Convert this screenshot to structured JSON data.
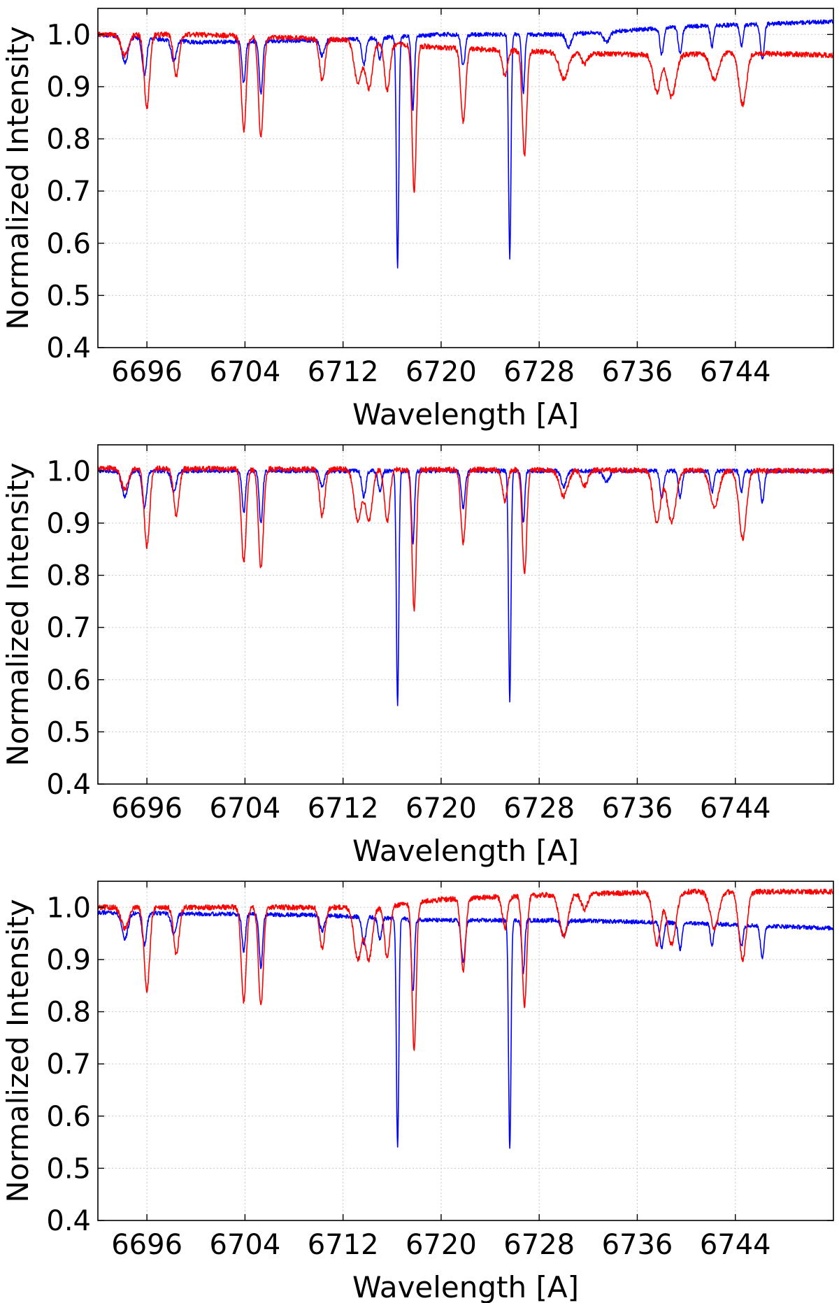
{
  "chart_data": [
    {
      "type": "line",
      "xlabel": "Wavelength [A]",
      "ylabel": "Normalized Intensity",
      "xlim": [
        6692,
        6752
      ],
      "ylim": [
        0.4,
        1.05
      ],
      "xticks": [
        6696,
        6704,
        6712,
        6720,
        6728,
        6736,
        6744
      ],
      "xtick_labels": [
        "6696",
        "6704",
        "6712",
        "6720",
        "6728",
        "6736",
        "6744"
      ],
      "yticks": [
        0.4,
        0.5,
        0.6,
        0.7,
        0.8,
        0.9,
        1.0
      ],
      "ytick_labels": [
        "0.4",
        "0.5",
        "0.6",
        "0.7",
        "0.8",
        "0.9",
        "1.0"
      ],
      "grid": true,
      "series": [
        {
          "color": "#0000ff",
          "continuum": [
            [
              6692,
              1.0
            ],
            [
              6700,
              0.985
            ],
            [
              6712,
              0.99
            ],
            [
              6720,
              1.0
            ],
            [
              6730,
              1.0
            ],
            [
              6740,
              1.015
            ],
            [
              6752,
              1.025
            ]
          ],
          "lines": [
            [
              6694.2,
              0.05,
              0.25
            ],
            [
              6695.8,
              0.07,
              0.18
            ],
            [
              6698.2,
              0.04,
              0.2
            ],
            [
              6703.9,
              0.08,
              0.14
            ],
            [
              6705.3,
              0.1,
              0.14
            ],
            [
              6710.3,
              0.03,
              0.18
            ],
            [
              6713.7,
              0.05,
              0.16
            ],
            [
              6715.0,
              0.04,
              0.15
            ],
            [
              6716.45,
              0.44,
              0.1
            ],
            [
              6717.7,
              0.14,
              0.12
            ],
            [
              6721.8,
              0.06,
              0.16
            ],
            [
              6725.6,
              0.43,
              0.1
            ],
            [
              6726.7,
              0.11,
              0.12
            ],
            [
              6730.4,
              0.025,
              0.2
            ],
            [
              6733.5,
              0.02,
              0.25
            ],
            [
              6738.0,
              0.05,
              0.15
            ],
            [
              6739.5,
              0.05,
              0.15
            ],
            [
              6742.1,
              0.04,
              0.13
            ],
            [
              6744.5,
              0.04,
              0.13
            ],
            [
              6746.2,
              0.07,
              0.15
            ]
          ],
          "noise": 0.004
        },
        {
          "color": "#ff0000",
          "continuum": [
            [
              6692,
              1.0
            ],
            [
              6700,
              1.0
            ],
            [
              6712,
              0.99
            ],
            [
              6720,
              0.975
            ],
            [
              6730,
              0.965
            ],
            [
              6738,
              0.96
            ],
            [
              6744,
              0.965
            ],
            [
              6752,
              0.96
            ]
          ],
          "lines": [
            [
              6694.2,
              0.04,
              0.3
            ],
            [
              6696.0,
              0.14,
              0.22
            ],
            [
              6698.4,
              0.08,
              0.22
            ],
            [
              6703.9,
              0.18,
              0.2
            ],
            [
              6705.3,
              0.19,
              0.2
            ],
            [
              6710.3,
              0.08,
              0.22
            ],
            [
              6713.2,
              0.08,
              0.3
            ],
            [
              6714.1,
              0.09,
              0.28
            ],
            [
              6715.6,
              0.09,
              0.22
            ],
            [
              6717.8,
              0.28,
              0.17
            ],
            [
              6721.8,
              0.14,
              0.2
            ],
            [
              6725.2,
              0.05,
              0.2
            ],
            [
              6726.8,
              0.2,
              0.18
            ],
            [
              6730.0,
              0.05,
              0.35
            ],
            [
              6731.7,
              0.02,
              0.25
            ],
            [
              6737.6,
              0.07,
              0.3
            ],
            [
              6738.8,
              0.08,
              0.35
            ],
            [
              6742.3,
              0.05,
              0.35
            ],
            [
              6744.6,
              0.1,
              0.3
            ]
          ],
          "noise": 0.005
        }
      ]
    },
    {
      "type": "line",
      "xlabel": "Wavelength [A]",
      "ylabel": "Normalized Intensity",
      "xlim": [
        6692,
        6752
      ],
      "ylim": [
        0.4,
        1.05
      ],
      "xticks": [
        6696,
        6704,
        6712,
        6720,
        6728,
        6736,
        6744
      ],
      "xtick_labels": [
        "6696",
        "6704",
        "6712",
        "6720",
        "6728",
        "6736",
        "6744"
      ],
      "yticks": [
        0.4,
        0.5,
        0.6,
        0.7,
        0.8,
        0.9,
        1.0
      ],
      "ytick_labels": [
        "0.4",
        "0.5",
        "0.6",
        "0.7",
        "0.8",
        "0.9",
        "1.0"
      ],
      "grid": true,
      "series": [
        {
          "color": "#0000ff",
          "continuum": [
            [
              6692,
              1.0
            ],
            [
              6752,
              1.0
            ]
          ],
          "lines": [
            [
              6694.2,
              0.05,
              0.25
            ],
            [
              6695.8,
              0.07,
              0.18
            ],
            [
              6698.2,
              0.04,
              0.2
            ],
            [
              6703.9,
              0.08,
              0.14
            ],
            [
              6705.3,
              0.1,
              0.14
            ],
            [
              6710.3,
              0.03,
              0.18
            ],
            [
              6713.7,
              0.05,
              0.16
            ],
            [
              6715.0,
              0.04,
              0.15
            ],
            [
              6716.45,
              0.45,
              0.1
            ],
            [
              6717.7,
              0.14,
              0.12
            ],
            [
              6721.8,
              0.07,
              0.16
            ],
            [
              6725.6,
              0.44,
              0.1
            ],
            [
              6726.7,
              0.1,
              0.12
            ],
            [
              6730.0,
              0.03,
              0.2
            ],
            [
              6733.5,
              0.02,
              0.25
            ],
            [
              6738.0,
              0.05,
              0.15
            ],
            [
              6739.5,
              0.05,
              0.15
            ],
            [
              6742.1,
              0.04,
              0.13
            ],
            [
              6744.5,
              0.04,
              0.13
            ],
            [
              6746.2,
              0.06,
              0.15
            ]
          ],
          "noise": 0.004
        },
        {
          "color": "#ff0000",
          "continuum": [
            [
              6692,
              1.005
            ],
            [
              6752,
              1.0
            ]
          ],
          "lines": [
            [
              6694.2,
              0.04,
              0.3
            ],
            [
              6696.0,
              0.15,
              0.22
            ],
            [
              6698.4,
              0.09,
              0.22
            ],
            [
              6703.9,
              0.18,
              0.2
            ],
            [
              6705.3,
              0.19,
              0.2
            ],
            [
              6710.3,
              0.09,
              0.22
            ],
            [
              6713.2,
              0.1,
              0.3
            ],
            [
              6714.1,
              0.1,
              0.28
            ],
            [
              6715.6,
              0.1,
              0.22
            ],
            [
              6717.8,
              0.27,
              0.17
            ],
            [
              6721.8,
              0.14,
              0.2
            ],
            [
              6725.2,
              0.06,
              0.2
            ],
            [
              6726.8,
              0.2,
              0.18
            ],
            [
              6730.0,
              0.05,
              0.35
            ],
            [
              6731.7,
              0.03,
              0.25
            ],
            [
              6737.6,
              0.1,
              0.3
            ],
            [
              6738.8,
              0.1,
              0.35
            ],
            [
              6742.3,
              0.07,
              0.35
            ],
            [
              6744.6,
              0.13,
              0.3
            ]
          ],
          "noise": 0.005
        }
      ]
    },
    {
      "type": "line",
      "xlabel": "Wavelength [A]",
      "ylabel": "Normalized Intensity",
      "xlim": [
        6692,
        6752
      ],
      "ylim": [
        0.4,
        1.05
      ],
      "xticks": [
        6696,
        6704,
        6712,
        6720,
        6728,
        6736,
        6744
      ],
      "xtick_labels": [
        "6696",
        "6704",
        "6712",
        "6720",
        "6728",
        "6736",
        "6744"
      ],
      "yticks": [
        0.4,
        0.5,
        0.6,
        0.7,
        0.8,
        0.9,
        1.0
      ],
      "ytick_labels": [
        "0.4",
        "0.5",
        "0.6",
        "0.7",
        "0.8",
        "0.9",
        "1.0"
      ],
      "grid": true,
      "series": [
        {
          "color": "#0000ff",
          "continuum": [
            [
              6692,
              0.99
            ],
            [
              6710,
              0.985
            ],
            [
              6720,
              0.975
            ],
            [
              6730,
              0.975
            ],
            [
              6740,
              0.97
            ],
            [
              6752,
              0.96
            ]
          ],
          "lines": [
            [
              6694.2,
              0.05,
              0.25
            ],
            [
              6695.8,
              0.06,
              0.18
            ],
            [
              6698.2,
              0.04,
              0.2
            ],
            [
              6703.9,
              0.07,
              0.14
            ],
            [
              6705.3,
              0.1,
              0.14
            ],
            [
              6710.3,
              0.03,
              0.18
            ],
            [
              6713.7,
              0.05,
              0.16
            ],
            [
              6715.0,
              0.04,
              0.15
            ],
            [
              6716.45,
              0.44,
              0.1
            ],
            [
              6717.7,
              0.14,
              0.12
            ],
            [
              6721.8,
              0.08,
              0.16
            ],
            [
              6725.6,
              0.44,
              0.1
            ],
            [
              6726.7,
              0.1,
              0.12
            ],
            [
              6730.0,
              0.03,
              0.2
            ],
            [
              6738.0,
              0.05,
              0.15
            ],
            [
              6739.5,
              0.05,
              0.15
            ],
            [
              6742.1,
              0.04,
              0.13
            ],
            [
              6744.5,
              0.04,
              0.13
            ],
            [
              6746.2,
              0.06,
              0.15
            ]
          ],
          "noise": 0.004
        },
        {
          "color": "#ff0000",
          "continuum": [
            [
              6692,
              1.0
            ],
            [
              6715,
              1.0
            ],
            [
              6720,
              1.015
            ],
            [
              6730,
              1.025
            ],
            [
              6740,
              1.03
            ],
            [
              6752,
              1.03
            ]
          ],
          "lines": [
            [
              6694.2,
              0.04,
              0.3
            ],
            [
              6696.0,
              0.16,
              0.22
            ],
            [
              6698.4,
              0.09,
              0.22
            ],
            [
              6703.9,
              0.18,
              0.2
            ],
            [
              6705.3,
              0.19,
              0.2
            ],
            [
              6710.3,
              0.08,
              0.22
            ],
            [
              6713.2,
              0.1,
              0.3
            ],
            [
              6714.1,
              0.1,
              0.28
            ],
            [
              6715.6,
              0.1,
              0.22
            ],
            [
              6717.8,
              0.28,
              0.17
            ],
            [
              6721.8,
              0.14,
              0.2
            ],
            [
              6725.2,
              0.06,
              0.2
            ],
            [
              6726.8,
              0.21,
              0.18
            ],
            [
              6730.0,
              0.08,
              0.35
            ],
            [
              6731.7,
              0.03,
              0.25
            ],
            [
              6737.6,
              0.1,
              0.3
            ],
            [
              6738.8,
              0.1,
              0.35
            ],
            [
              6742.3,
              0.07,
              0.35
            ],
            [
              6744.6,
              0.13,
              0.3
            ]
          ],
          "noise": 0.005
        }
      ]
    }
  ]
}
